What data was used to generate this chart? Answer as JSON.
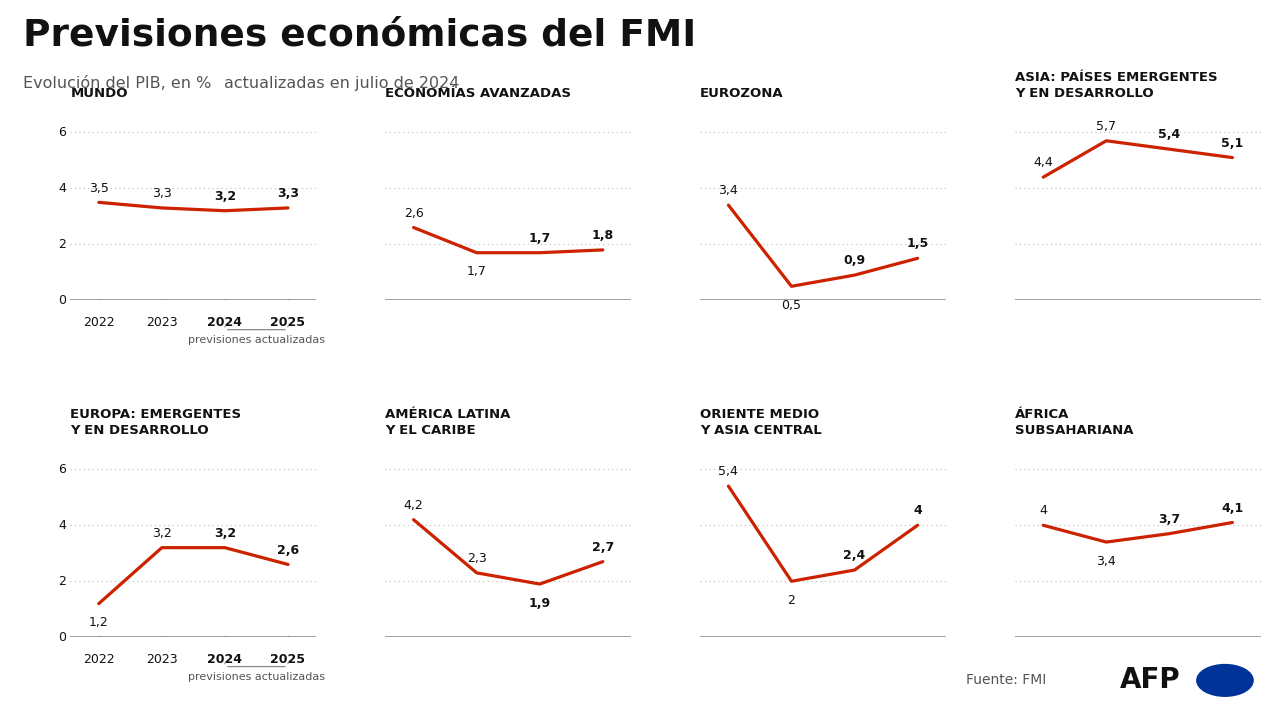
{
  "title": "Previsiones económicas del FMI",
  "subtitle1": "Evolución del PIB, en %",
  "subtitle2": "actualizadas en julio de 2024",
  "footer_source": "Fuente: FMI",
  "footer_brand": "AFP",
  "line_color": "#CC2200",
  "bg_color": "#FFFFFF",
  "text_color": "#111111",
  "grid_color": "#BBBBBB",
  "years": [
    "2022",
    "2023",
    "2024",
    "2025"
  ],
  "charts": [
    {
      "title": "MUNDO",
      "values": [
        3.5,
        3.3,
        3.2,
        3.3
      ],
      "labels": [
        "3,5",
        "3,3",
        "3,2",
        "3,3"
      ],
      "label_offsets": [
        0.28,
        0.28,
        0.28,
        0.28
      ],
      "show_yticks": true,
      "show_xtick_labels": true,
      "show_previsiones": true,
      "row": 0,
      "col": 0
    },
    {
      "title": "ECONOMÍAS AVANZADAS",
      "values": [
        2.6,
        1.7,
        1.7,
        1.8
      ],
      "labels": [
        "2,6",
        "1,7",
        "1,7",
        "1,8"
      ],
      "label_offsets": [
        0.28,
        -0.45,
        0.28,
        0.28
      ],
      "show_yticks": false,
      "show_xtick_labels": false,
      "show_previsiones": false,
      "row": 0,
      "col": 1
    },
    {
      "title": "EUROZONA",
      "values": [
        3.4,
        0.5,
        0.9,
        1.5
      ],
      "labels": [
        "3,4",
        "0,5",
        "0,9",
        "1,5"
      ],
      "label_offsets": [
        0.28,
        -0.45,
        0.28,
        0.28
      ],
      "show_yticks": false,
      "show_xtick_labels": false,
      "show_previsiones": false,
      "row": 0,
      "col": 2
    },
    {
      "title": "ASIA: PAÍSES EMERGENTES\nY EN DESARROLLO",
      "values": [
        4.4,
        5.7,
        5.4,
        5.1
      ],
      "labels": [
        "4,4",
        "5,7",
        "5,4",
        "5,1"
      ],
      "label_offsets": [
        0.28,
        0.28,
        0.28,
        0.28
      ],
      "show_yticks": false,
      "show_xtick_labels": false,
      "show_previsiones": false,
      "row": 0,
      "col": 3
    },
    {
      "title": "EUROPA: EMERGENTES\nY EN DESARROLLO",
      "values": [
        1.2,
        3.2,
        3.2,
        2.6
      ],
      "labels": [
        "1,2",
        "3,2",
        "3,2",
        "2,6"
      ],
      "label_offsets": [
        -0.45,
        0.28,
        0.28,
        0.28
      ],
      "show_yticks": true,
      "show_xtick_labels": true,
      "show_previsiones": true,
      "row": 1,
      "col": 0
    },
    {
      "title": "AMÉRICA LATINA\nY EL CARIBE",
      "values": [
        4.2,
        2.3,
        1.9,
        2.7
      ],
      "labels": [
        "4,2",
        "2,3",
        "1,9",
        "2,7"
      ],
      "label_offsets": [
        0.28,
        0.28,
        -0.45,
        0.28
      ],
      "show_yticks": false,
      "show_xtick_labels": false,
      "show_previsiones": false,
      "row": 1,
      "col": 1
    },
    {
      "title": "ORIENTE MEDIO\nY ASIA CENTRAL",
      "values": [
        5.4,
        2.0,
        2.4,
        4.0
      ],
      "labels": [
        "5,4",
        "2",
        "2,4",
        "4"
      ],
      "label_offsets": [
        0.28,
        -0.45,
        0.28,
        0.28
      ],
      "show_yticks": false,
      "show_xtick_labels": false,
      "show_previsiones": false,
      "row": 1,
      "col": 2
    },
    {
      "title": "ÁFRICA\nSUBSAHARIANA",
      "values": [
        4.0,
        3.4,
        3.7,
        4.1
      ],
      "labels": [
        "4",
        "3,4",
        "3,7",
        "4,1"
      ],
      "label_offsets": [
        0.28,
        -0.45,
        0.28,
        0.28
      ],
      "show_yticks": false,
      "show_xtick_labels": false,
      "show_previsiones": false,
      "row": 1,
      "col": 3
    }
  ]
}
